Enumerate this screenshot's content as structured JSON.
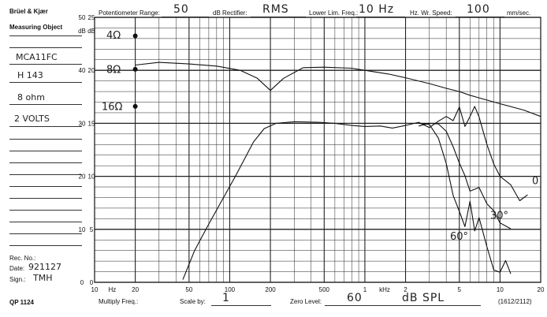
{
  "header": {
    "brand": "Brüel & Kjær",
    "pot_label": "Potentiometer Range:",
    "pot_value": "50",
    "pot_unit": "dB",
    "rect_label": "Rectifier:",
    "rect_value": "RMS",
    "llf_label": "Lower Lim. Freq.:",
    "llf_value": "10 Hz",
    "speed_label": "Hz. Wr. Speed:",
    "speed_value": "100",
    "speed_unit": "mm/sec."
  },
  "sidebar": {
    "object_label": "Measuring Object",
    "object_lines": [
      "MCA11FC",
      "H 143",
      "8 ohm",
      "2 VOLTS"
    ],
    "rec_label": "Rec. No.:",
    "date_label": "Date:",
    "date_value": "921127",
    "sign_label": "Sign.:",
    "sign_value": "TMH",
    "qp_label": "QP 1124"
  },
  "footer": {
    "multiply_label": "Multiply Freq.:",
    "scale_label": "Scale by:",
    "scale_value": "1",
    "zero_label": "Zero Level:",
    "zero_value": "60",
    "zero_unit": "dB SPL",
    "code": "(1612/2112)"
  },
  "chart_data": {
    "type": "line",
    "xscale": "log",
    "xlim": [
      10,
      20000
    ],
    "ylim": [
      0,
      50
    ],
    "grid": true,
    "x_ticks": [
      "10",
      "Hz",
      "20",
      "50",
      "100",
      "200",
      "500",
      "1",
      "kHz",
      "2",
      "5",
      "10",
      "20"
    ],
    "y_ticks_left_a": [
      "50",
      "dB",
      "40",
      "30",
      "20",
      "10",
      "0"
    ],
    "y_ticks_left_b": [
      "25",
      "dB",
      "20",
      "15",
      "10",
      "5",
      "0"
    ],
    "annotations": [
      "4Ω",
      "8Ω",
      "16Ω",
      "30°",
      "60°",
      "0"
    ],
    "series": [
      {
        "x": [
          20,
          30,
          50,
          80,
          120,
          160,
          200,
          250,
          350,
          500,
          800,
          1000,
          1500,
          2000,
          3000,
          4000,
          5000,
          6000,
          7000,
          10000,
          15000,
          20000
        ],
        "y": [
          41,
          41.5,
          41.2,
          40.8,
          40.0,
          38.5,
          36.2,
          38.5,
          40.5,
          40.6,
          40.4,
          40.0,
          39.3,
          38.6,
          37.5,
          36.6,
          36.0,
          35.3,
          34.8,
          33.7,
          32.5,
          31.3
        ]
      },
      {
        "x": [
          45,
          55,
          70,
          90,
          110,
          130,
          150,
          180,
          220,
          300,
          450,
          600,
          800,
          1000,
          1300,
          1600,
          2000,
          2500,
          3000,
          3500,
          4000,
          4500,
          5000,
          5500,
          6000,
          6500,
          7000,
          8000,
          9000,
          10000,
          12000,
          14000,
          16000
        ],
        "y": [
          0.5,
          6,
          11,
          16,
          20,
          23.5,
          26.5,
          29,
          30,
          30.3,
          30.2,
          30.0,
          29.6,
          29.4,
          29.5,
          29.1,
          29.6,
          30.2,
          29.2,
          30.4,
          31.3,
          30.5,
          33.1,
          29.4,
          31.3,
          33.2,
          31.2,
          26,
          22.3,
          20,
          18.4,
          15.4,
          16.5
        ]
      },
      {
        "x": [
          2500,
          3000,
          3500,
          4000,
          4500,
          5000,
          5500,
          6000,
          6500,
          7000,
          8000,
          9000,
          10000,
          11000,
          12000
        ],
        "y": [
          30.0,
          29.8,
          27.2,
          22.4,
          16.4,
          13.4,
          10.5,
          15.3,
          9.7,
          12.2,
          6.7,
          2.3,
          1.9,
          4.1,
          1.6
        ]
      },
      {
        "x": [
          2500,
          3000,
          3500,
          4000,
          4500,
          5000,
          5500,
          6000,
          7000,
          8000,
          9000,
          10000,
          12000
        ],
        "y": [
          29.5,
          30.0,
          29.9,
          28.5,
          25.6,
          22.5,
          20.1,
          17.2,
          17.9,
          14.8,
          13.5,
          11.2,
          10.1
        ]
      }
    ]
  }
}
